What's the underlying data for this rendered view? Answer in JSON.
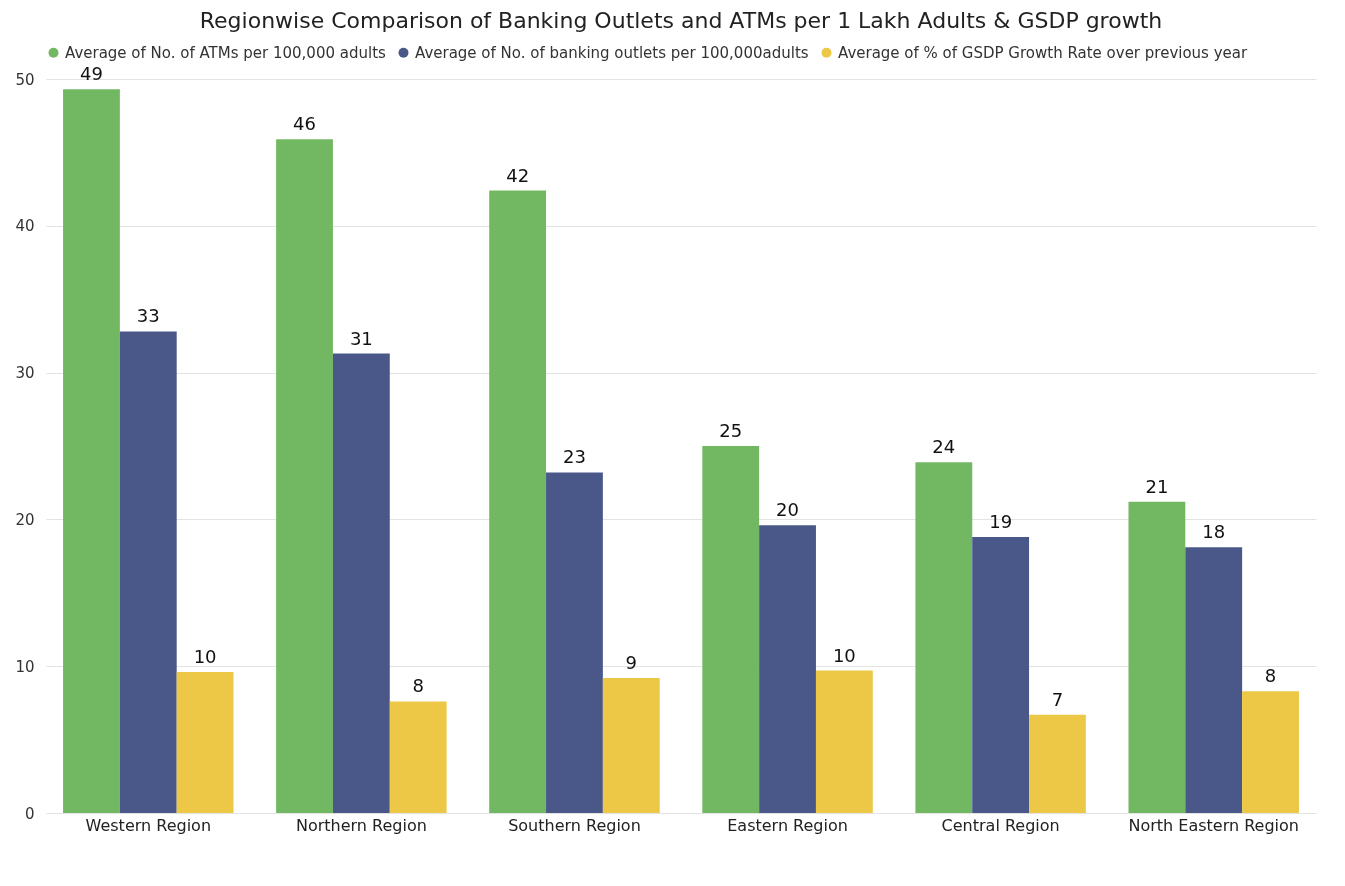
{
  "chart_data": {
    "type": "bar",
    "title": "Regionwise Comparison of Banking Outlets and ATMs per 1 Lakh Adults & GSDP growth",
    "categories": [
      "Western Region",
      "Northern Region",
      "Southern Region",
      "Eastern Region",
      "Central Region",
      "North Eastern Region"
    ],
    "series": [
      {
        "name": "Average of No. of ATMs per 100,000 adults",
        "color": "#72b862",
        "values": [
          49.3,
          45.9,
          42.4,
          25.0,
          23.9,
          21.2
        ],
        "value_labels": [
          "49",
          "46",
          "42",
          "25",
          "24",
          "21"
        ]
      },
      {
        "name": "Average of No. of banking outlets per 100,000adults",
        "color": "#4a5889",
        "values": [
          32.8,
          31.3,
          23.2,
          19.6,
          18.8,
          18.1
        ],
        "value_labels": [
          "33",
          "31",
          "23",
          "20",
          "19",
          "18"
        ]
      },
      {
        "name": "Average of % of GSDP Growth Rate over previous year",
        "color": "#ecc846",
        "values": [
          9.6,
          7.6,
          9.2,
          9.7,
          6.7,
          8.3
        ],
        "value_labels": [
          "10",
          "8",
          "9",
          "10",
          "7",
          "8"
        ]
      }
    ],
    "ylim": [
      0,
      50
    ],
    "yticks": [
      0,
      10,
      20,
      30,
      40,
      50
    ],
    "grid": "y",
    "legend": "top"
  }
}
